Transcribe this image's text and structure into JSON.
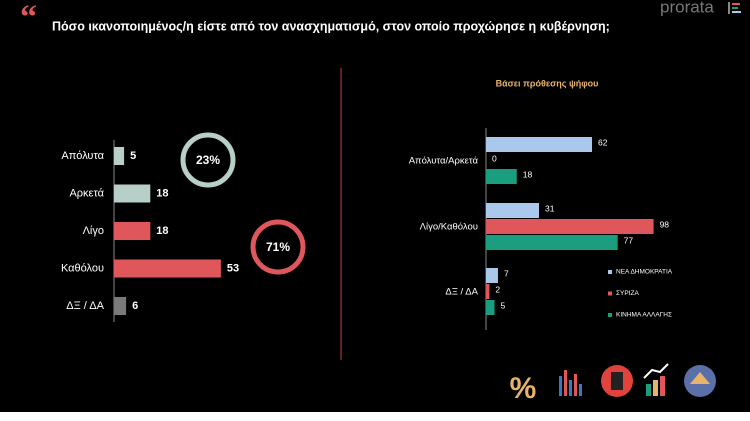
{
  "header": {
    "title": "Πόσο ικανοποιημένος/η είστε από τον ανασχηματισμό, στον οποίο προχώρησε η κυβέρνηση;",
    "logo": "prorata"
  },
  "annotations": [
    {
      "text": "23%",
      "color": "#b7cfc8"
    },
    {
      "text": "71%",
      "color": "#e0575b"
    }
  ],
  "chart_data": [
    {
      "type": "bar",
      "orientation": "horizontal",
      "categories": [
        "Απόλυτα",
        "Αρκετά",
        "Λίγο",
        "Καθόλου",
        "ΔΞ / ΔΑ"
      ],
      "values": [
        5,
        18,
        18,
        53,
        6
      ],
      "colors": [
        "#b7cfc8",
        "#b7cfc8",
        "#e0575b",
        "#e0575b",
        "#7a7a7a"
      ],
      "xlim": [
        0,
        60
      ]
    },
    {
      "type": "grouped-bar",
      "orientation": "horizontal",
      "subtitle": "Βάσει πρόθεσης ψήφου",
      "categories": [
        "Απόλυτα/Αρκετά",
        "Λίγο/Καθόλου",
        "ΔΞ / ΔΑ"
      ],
      "series": [
        {
          "name": "ΝΕΑ ΔΗΜΟΚΡΑΤΙΑ",
          "color": "#a9c8ec",
          "values": [
            62,
            31,
            7
          ]
        },
        {
          "name": "ΣΥΡΙΖΑ",
          "color": "#e0575b",
          "values": [
            0,
            98,
            2
          ]
        },
        {
          "name": "ΚΙΝΗΜΑ ΑΛΛΑΓΗΣ",
          "color": "#1a9e7e",
          "values": [
            18,
            77,
            5
          ]
        }
      ],
      "xlim": [
        0,
        100
      ]
    }
  ]
}
